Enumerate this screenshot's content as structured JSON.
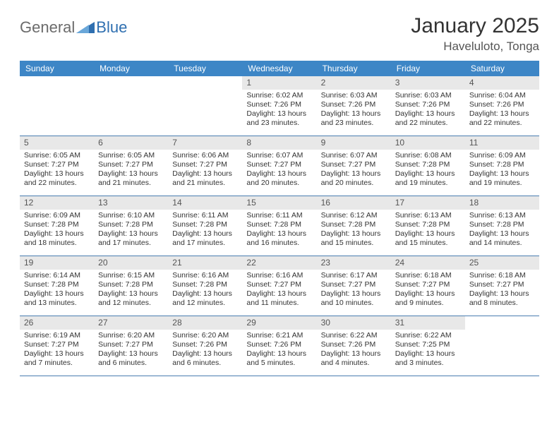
{
  "logo": {
    "general": "General",
    "blue": "Blue"
  },
  "header": {
    "title": "January 2025",
    "location": "Haveluloto, Tonga"
  },
  "colors": {
    "header_bg": "#3d86c6",
    "header_text": "#ffffff",
    "datebar_bg": "#e8e8e8",
    "rule": "#4a7db0",
    "body_text": "#333333",
    "logo_gray": "#6b6b6b",
    "logo_blue": "#2f6fb0"
  },
  "typography": {
    "title_fontsize": 30,
    "location_fontsize": 17,
    "dayhead_fontsize": 12,
    "cell_fontsize": 10.5,
    "logo_fontsize": 22
  },
  "dayNames": [
    "Sunday",
    "Monday",
    "Tuesday",
    "Wednesday",
    "Thursday",
    "Friday",
    "Saturday"
  ],
  "weeks": [
    [
      null,
      null,
      null,
      {
        "n": "1",
        "sunrise": "6:02 AM",
        "sunset": "7:26 PM",
        "daylight": "13 hours and 23 minutes."
      },
      {
        "n": "2",
        "sunrise": "6:03 AM",
        "sunset": "7:26 PM",
        "daylight": "13 hours and 23 minutes."
      },
      {
        "n": "3",
        "sunrise": "6:03 AM",
        "sunset": "7:26 PM",
        "daylight": "13 hours and 22 minutes."
      },
      {
        "n": "4",
        "sunrise": "6:04 AM",
        "sunset": "7:26 PM",
        "daylight": "13 hours and 22 minutes."
      }
    ],
    [
      {
        "n": "5",
        "sunrise": "6:05 AM",
        "sunset": "7:27 PM",
        "daylight": "13 hours and 22 minutes."
      },
      {
        "n": "6",
        "sunrise": "6:05 AM",
        "sunset": "7:27 PM",
        "daylight": "13 hours and 21 minutes."
      },
      {
        "n": "7",
        "sunrise": "6:06 AM",
        "sunset": "7:27 PM",
        "daylight": "13 hours and 21 minutes."
      },
      {
        "n": "8",
        "sunrise": "6:07 AM",
        "sunset": "7:27 PM",
        "daylight": "13 hours and 20 minutes."
      },
      {
        "n": "9",
        "sunrise": "6:07 AM",
        "sunset": "7:27 PM",
        "daylight": "13 hours and 20 minutes."
      },
      {
        "n": "10",
        "sunrise": "6:08 AM",
        "sunset": "7:28 PM",
        "daylight": "13 hours and 19 minutes."
      },
      {
        "n": "11",
        "sunrise": "6:09 AM",
        "sunset": "7:28 PM",
        "daylight": "13 hours and 19 minutes."
      }
    ],
    [
      {
        "n": "12",
        "sunrise": "6:09 AM",
        "sunset": "7:28 PM",
        "daylight": "13 hours and 18 minutes."
      },
      {
        "n": "13",
        "sunrise": "6:10 AM",
        "sunset": "7:28 PM",
        "daylight": "13 hours and 17 minutes."
      },
      {
        "n": "14",
        "sunrise": "6:11 AM",
        "sunset": "7:28 PM",
        "daylight": "13 hours and 17 minutes."
      },
      {
        "n": "15",
        "sunrise": "6:11 AM",
        "sunset": "7:28 PM",
        "daylight": "13 hours and 16 minutes."
      },
      {
        "n": "16",
        "sunrise": "6:12 AM",
        "sunset": "7:28 PM",
        "daylight": "13 hours and 15 minutes."
      },
      {
        "n": "17",
        "sunrise": "6:13 AM",
        "sunset": "7:28 PM",
        "daylight": "13 hours and 15 minutes."
      },
      {
        "n": "18",
        "sunrise": "6:13 AM",
        "sunset": "7:28 PM",
        "daylight": "13 hours and 14 minutes."
      }
    ],
    [
      {
        "n": "19",
        "sunrise": "6:14 AM",
        "sunset": "7:28 PM",
        "daylight": "13 hours and 13 minutes."
      },
      {
        "n": "20",
        "sunrise": "6:15 AM",
        "sunset": "7:28 PM",
        "daylight": "13 hours and 12 minutes."
      },
      {
        "n": "21",
        "sunrise": "6:16 AM",
        "sunset": "7:28 PM",
        "daylight": "13 hours and 12 minutes."
      },
      {
        "n": "22",
        "sunrise": "6:16 AM",
        "sunset": "7:27 PM",
        "daylight": "13 hours and 11 minutes."
      },
      {
        "n": "23",
        "sunrise": "6:17 AM",
        "sunset": "7:27 PM",
        "daylight": "13 hours and 10 minutes."
      },
      {
        "n": "24",
        "sunrise": "6:18 AM",
        "sunset": "7:27 PM",
        "daylight": "13 hours and 9 minutes."
      },
      {
        "n": "25",
        "sunrise": "6:18 AM",
        "sunset": "7:27 PM",
        "daylight": "13 hours and 8 minutes."
      }
    ],
    [
      {
        "n": "26",
        "sunrise": "6:19 AM",
        "sunset": "7:27 PM",
        "daylight": "13 hours and 7 minutes."
      },
      {
        "n": "27",
        "sunrise": "6:20 AM",
        "sunset": "7:27 PM",
        "daylight": "13 hours and 6 minutes."
      },
      {
        "n": "28",
        "sunrise": "6:20 AM",
        "sunset": "7:26 PM",
        "daylight": "13 hours and 6 minutes."
      },
      {
        "n": "29",
        "sunrise": "6:21 AM",
        "sunset": "7:26 PM",
        "daylight": "13 hours and 5 minutes."
      },
      {
        "n": "30",
        "sunrise": "6:22 AM",
        "sunset": "7:26 PM",
        "daylight": "13 hours and 4 minutes."
      },
      {
        "n": "31",
        "sunrise": "6:22 AM",
        "sunset": "7:25 PM",
        "daylight": "13 hours and 3 minutes."
      },
      null
    ]
  ],
  "labels": {
    "sunrise": "Sunrise:",
    "sunset": "Sunset:",
    "daylight": "Daylight:"
  }
}
